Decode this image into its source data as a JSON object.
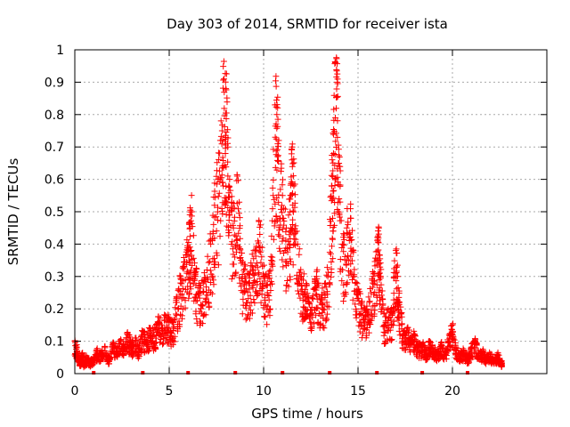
{
  "chart_data": {
    "type": "scatter",
    "title": "Day 303 of 2014, SRMTID for receiver ista",
    "xlabel": "GPS time / hours",
    "ylabel": "SRMTID / TECUs",
    "xlim": [
      0,
      25
    ],
    "ylim": [
      0,
      1
    ],
    "xticks": [
      0,
      5,
      10,
      15,
      20
    ],
    "xtick_labels": [
      "0",
      "5",
      "10",
      "15",
      "20"
    ],
    "yticks": [
      0,
      0.1,
      0.2,
      0.3,
      0.4,
      0.5,
      0.6,
      0.7,
      0.8,
      0.9,
      1
    ],
    "ytick_labels": [
      "0",
      "0.1",
      "0.2",
      "0.3",
      "0.4",
      "0.5",
      "0.6",
      "0.7",
      "0.8",
      "0.9",
      "1"
    ],
    "grid": true,
    "marker": "+",
    "series": [
      {
        "name": "SRMTID",
        "color": "#ff0000",
        "marker": "+",
        "points_approx": [
          [
            0.0,
            0.1
          ],
          [
            0.1,
            0.08
          ],
          [
            0.2,
            0.05
          ],
          [
            0.3,
            0.04
          ],
          [
            0.4,
            0.06
          ],
          [
            0.5,
            0.03
          ],
          [
            0.6,
            0.05
          ],
          [
            0.8,
            0.04
          ],
          [
            1.0,
            0.05
          ],
          [
            1.2,
            0.07
          ],
          [
            1.4,
            0.06
          ],
          [
            1.6,
            0.08
          ],
          [
            1.8,
            0.05
          ],
          [
            2.0,
            0.09
          ],
          [
            2.2,
            0.07
          ],
          [
            2.4,
            0.1
          ],
          [
            2.6,
            0.08
          ],
          [
            2.8,
            0.12
          ],
          [
            3.0,
            0.09
          ],
          [
            3.2,
            0.11
          ],
          [
            3.4,
            0.08
          ],
          [
            3.6,
            0.13
          ],
          [
            3.8,
            0.1
          ],
          [
            4.0,
            0.14
          ],
          [
            4.2,
            0.12
          ],
          [
            4.4,
            0.16
          ],
          [
            4.6,
            0.15
          ],
          [
            4.8,
            0.18
          ],
          [
            5.0,
            0.16
          ],
          [
            5.2,
            0.14
          ],
          [
            5.4,
            0.22
          ],
          [
            5.6,
            0.28
          ],
          [
            5.8,
            0.33
          ],
          [
            6.0,
            0.38
          ],
          [
            6.1,
            0.45
          ],
          [
            6.2,
            0.5
          ],
          [
            6.4,
            0.3
          ],
          [
            6.6,
            0.25
          ],
          [
            6.8,
            0.28
          ],
          [
            7.0,
            0.32
          ],
          [
            7.2,
            0.4
          ],
          [
            7.4,
            0.52
          ],
          [
            7.6,
            0.6
          ],
          [
            7.8,
            0.75
          ],
          [
            7.9,
            0.91
          ],
          [
            8.0,
            0.88
          ],
          [
            8.1,
            0.7
          ],
          [
            8.2,
            0.6
          ],
          [
            8.4,
            0.45
          ],
          [
            8.6,
            0.61
          ],
          [
            8.8,
            0.35
          ],
          [
            9.0,
            0.3
          ],
          [
            9.2,
            0.28
          ],
          [
            9.4,
            0.33
          ],
          [
            9.6,
            0.38
          ],
          [
            9.8,
            0.43
          ],
          [
            10.0,
            0.3
          ],
          [
            10.2,
            0.25
          ],
          [
            10.4,
            0.35
          ],
          [
            10.6,
            0.83
          ],
          [
            10.7,
            0.8
          ],
          [
            10.8,
            0.72
          ],
          [
            11.0,
            0.55
          ],
          [
            11.2,
            0.45
          ],
          [
            11.4,
            0.5
          ],
          [
            11.5,
            0.66
          ],
          [
            11.6,
            0.58
          ],
          [
            11.8,
            0.4
          ],
          [
            12.0,
            0.3
          ],
          [
            12.2,
            0.26
          ],
          [
            12.4,
            0.22
          ],
          [
            12.6,
            0.24
          ],
          [
            12.8,
            0.3
          ],
          [
            13.0,
            0.22
          ],
          [
            13.2,
            0.25
          ],
          [
            13.4,
            0.3
          ],
          [
            13.6,
            0.58
          ],
          [
            13.7,
            0.68
          ],
          [
            13.8,
            0.96
          ],
          [
            13.9,
            0.9
          ],
          [
            14.0,
            0.64
          ],
          [
            14.2,
            0.4
          ],
          [
            14.4,
            0.45
          ],
          [
            14.6,
            0.48
          ],
          [
            14.8,
            0.3
          ],
          [
            15.0,
            0.25
          ],
          [
            15.2,
            0.2
          ],
          [
            15.4,
            0.18
          ],
          [
            15.6,
            0.22
          ],
          [
            15.8,
            0.3
          ],
          [
            16.0,
            0.35
          ],
          [
            16.1,
            0.45
          ],
          [
            16.2,
            0.3
          ],
          [
            16.4,
            0.15
          ],
          [
            16.6,
            0.2
          ],
          [
            16.8,
            0.18
          ],
          [
            17.0,
            0.38
          ],
          [
            17.1,
            0.3
          ],
          [
            17.2,
            0.22
          ],
          [
            17.4,
            0.12
          ],
          [
            17.6,
            0.14
          ],
          [
            17.8,
            0.1
          ],
          [
            18.0,
            0.12
          ],
          [
            18.2,
            0.08
          ],
          [
            18.4,
            0.09
          ],
          [
            18.6,
            0.07
          ],
          [
            18.8,
            0.1
          ],
          [
            19.0,
            0.08
          ],
          [
            19.2,
            0.06
          ],
          [
            19.4,
            0.09
          ],
          [
            19.6,
            0.07
          ],
          [
            19.8,
            0.1
          ],
          [
            20.0,
            0.15
          ],
          [
            20.2,
            0.08
          ],
          [
            20.4,
            0.06
          ],
          [
            20.6,
            0.07
          ],
          [
            20.8,
            0.05
          ],
          [
            21.0,
            0.08
          ],
          [
            21.2,
            0.1
          ],
          [
            21.4,
            0.06
          ],
          [
            21.6,
            0.07
          ],
          [
            21.8,
            0.05
          ],
          [
            22.0,
            0.06
          ],
          [
            22.2,
            0.04
          ],
          [
            22.4,
            0.06
          ],
          [
            22.6,
            0.03
          ]
        ]
      }
    ],
    "bottom_markers_x": [
      1.0,
      3.6,
      6.0,
      8.5,
      11.0,
      13.5,
      16.0,
      18.4,
      20.8
    ]
  }
}
